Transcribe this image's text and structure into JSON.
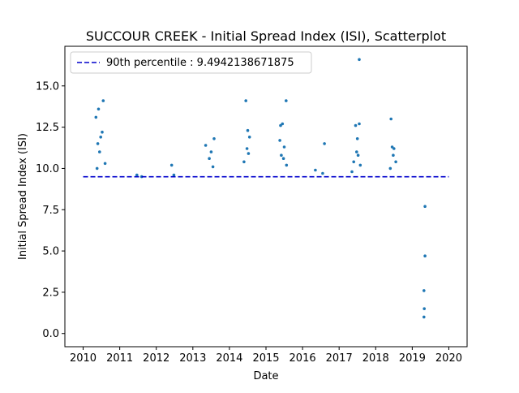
{
  "chart_data": {
    "type": "scatter",
    "title": "SUCCOUR CREEK - Initial Spread Index (ISI), Scatterplot",
    "xlabel": "Date",
    "ylabel": "Initial Spread Index (ISI)",
    "xlim": [
      2009.5,
      2020.5
    ],
    "ylim": [
      -0.8,
      17.4
    ],
    "x_ticks": [
      2010,
      2011,
      2012,
      2013,
      2014,
      2015,
      2016,
      2017,
      2018,
      2019,
      2020
    ],
    "x_tick_labels": [
      "2010",
      "2011",
      "2012",
      "2013",
      "2014",
      "2015",
      "2016",
      "2017",
      "2018",
      "2019",
      "2020"
    ],
    "y_ticks": [
      0.0,
      2.5,
      5.0,
      7.5,
      10.0,
      12.5,
      15.0
    ],
    "y_tick_labels": [
      "0.0",
      "2.5",
      "5.0",
      "7.5",
      "10.0",
      "12.5",
      "15.0"
    ],
    "grid": false,
    "legend": {
      "placement": "upper left",
      "entries": [
        "90th percentile : 9.4942138671875"
      ]
    },
    "colors": {
      "points": "#1f77b4",
      "percentile_line": "#0000cc"
    },
    "reference_line": {
      "label": "90th percentile : 9.4942138671875",
      "y": 9.4942138671875,
      "x_start": 2010.0,
      "x_end": 2020.0
    },
    "series": [
      {
        "points": [
          [
            2010.35,
            13.1
          ],
          [
            2010.42,
            13.6
          ],
          [
            2010.55,
            14.1
          ],
          [
            2010.52,
            12.2
          ],
          [
            2010.48,
            11.9
          ],
          [
            2010.4,
            11.5
          ],
          [
            2010.45,
            11.0
          ],
          [
            2010.6,
            10.3
          ],
          [
            2010.38,
            10.0
          ],
          [
            2011.47,
            9.6
          ],
          [
            2011.6,
            9.5
          ],
          [
            2012.42,
            10.2
          ],
          [
            2012.48,
            9.6
          ],
          [
            2013.35,
            11.4
          ],
          [
            2013.58,
            11.8
          ],
          [
            2013.5,
            11.0
          ],
          [
            2013.45,
            10.6
          ],
          [
            2013.55,
            10.1
          ],
          [
            2014.45,
            14.1
          ],
          [
            2014.5,
            12.3
          ],
          [
            2014.55,
            11.9
          ],
          [
            2014.48,
            11.2
          ],
          [
            2014.52,
            10.9
          ],
          [
            2014.4,
            10.4
          ],
          [
            2015.4,
            12.6
          ],
          [
            2015.45,
            12.7
          ],
          [
            2015.55,
            14.1
          ],
          [
            2015.38,
            11.7
          ],
          [
            2015.5,
            11.3
          ],
          [
            2015.42,
            10.8
          ],
          [
            2015.48,
            10.6
          ],
          [
            2015.56,
            10.2
          ],
          [
            2016.35,
            9.9
          ],
          [
            2016.55,
            9.7
          ],
          [
            2016.6,
            11.5
          ],
          [
            2017.55,
            16.6
          ],
          [
            2017.45,
            12.6
          ],
          [
            2017.55,
            12.7
          ],
          [
            2017.5,
            11.8
          ],
          [
            2017.48,
            11.0
          ],
          [
            2017.52,
            10.8
          ],
          [
            2017.4,
            10.4
          ],
          [
            2017.58,
            10.2
          ],
          [
            2017.35,
            9.8
          ],
          [
            2018.42,
            13.0
          ],
          [
            2018.45,
            11.3
          ],
          [
            2018.5,
            11.2
          ],
          [
            2018.48,
            10.8
          ],
          [
            2018.55,
            10.4
          ],
          [
            2018.4,
            10.0
          ],
          [
            2019.35,
            7.7
          ],
          [
            2019.35,
            4.7
          ],
          [
            2019.32,
            2.6
          ],
          [
            2019.33,
            1.5
          ],
          [
            2019.32,
            1.0
          ]
        ]
      }
    ]
  }
}
